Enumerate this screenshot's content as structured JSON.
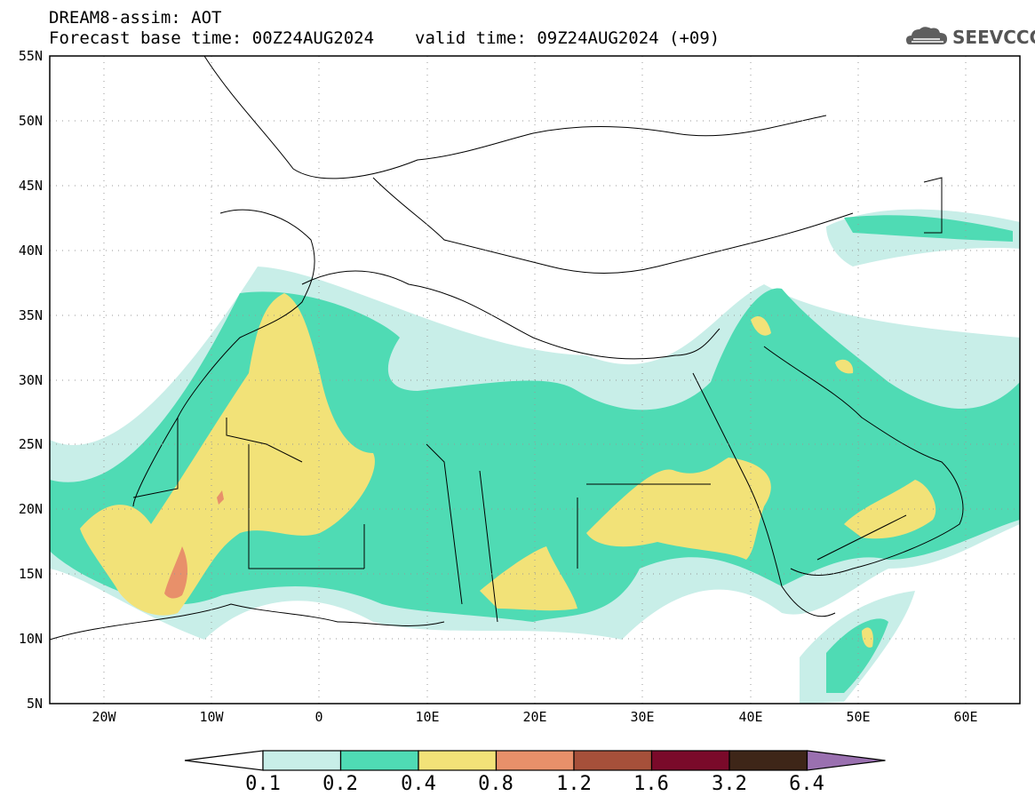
{
  "header": {
    "model": "DREAM8-assim: AOT",
    "base_time": "Forecast base time: 00Z24AUG2024",
    "valid_time": "valid time: 09Z24AUG2024 (+09)"
  },
  "logo": {
    "text": "SEEVCCC",
    "icon": "cloud-icon"
  },
  "axes": {
    "lat_labels": [
      "55N",
      "50N",
      "45N",
      "40N",
      "35N",
      "30N",
      "25N",
      "20N",
      "15N",
      "10N",
      "5N"
    ],
    "lon_labels": [
      "20W",
      "10W",
      "0",
      "10E",
      "20E",
      "30E",
      "40E",
      "50E",
      "60E"
    ],
    "lon_range": [
      -25,
      65
    ],
    "lat_range": [
      5,
      55
    ],
    "grid": "dotted"
  },
  "colorbar": {
    "levels": [
      "0.1",
      "0.2",
      "0.4",
      "0.8",
      "1.2",
      "1.6",
      "3.2",
      "6.4"
    ],
    "colors": [
      "#ffffff",
      "#c8eee8",
      "#4fdbb4",
      "#f2e278",
      "#e8906a",
      "#a6503a",
      "#7a0a2a",
      "#3e2618",
      "#9a70b0"
    ]
  }
}
